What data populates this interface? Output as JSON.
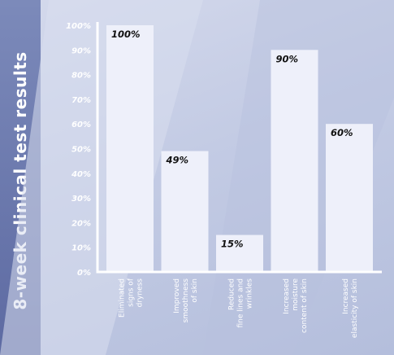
{
  "chart_data": {
    "type": "bar",
    "title": "8-week clinical test results",
    "categories": [
      [
        "Eliminated",
        "signs of",
        "dryness"
      ],
      [
        "Improved",
        "smoothness",
        "of skin"
      ],
      [
        "Reduced",
        "fine lines and",
        "wrinkles"
      ],
      [
        "Increased",
        "moisture",
        "content of skin"
      ],
      [
        "Increased",
        "elasticity of skin"
      ]
    ],
    "values": [
      100,
      49,
      15,
      90,
      60
    ],
    "data_labels": [
      "100%",
      "49%",
      "15%",
      "90%",
      "60%"
    ],
    "y_ticks": [
      "0%",
      "10%",
      "20%",
      "30%",
      "40%",
      "50%",
      "60%",
      "70%",
      "80%",
      "90%",
      "100%"
    ],
    "ylim": [
      0,
      100
    ],
    "xlabel": "",
    "ylabel": "",
    "grid": false,
    "legend": "none",
    "colors": {
      "bar": "#eef0fa",
      "axis": "#ffffff",
      "title_band": "#6a78ad",
      "background": "#c3cbe4"
    }
  }
}
